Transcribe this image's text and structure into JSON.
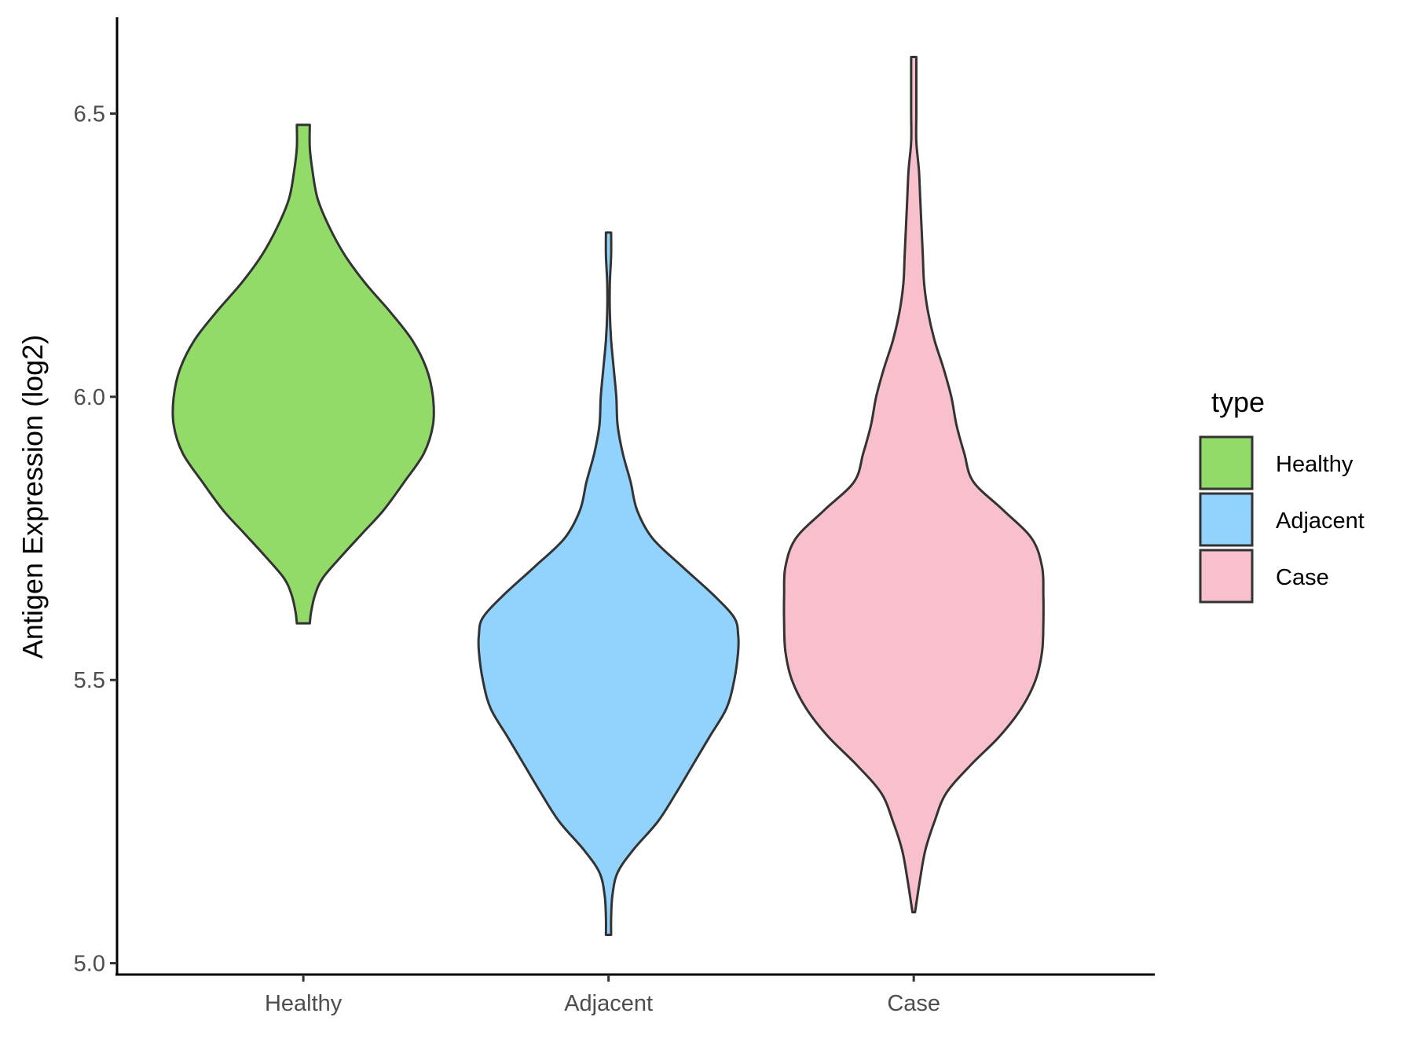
{
  "chart_data": {
    "type": "violin",
    "title": "",
    "xlabel": "",
    "ylabel": "Antigen Expression (log2)",
    "ylim": [
      4.98,
      6.67
    ],
    "yticks": [
      5.0,
      5.5,
      6.0,
      6.5
    ],
    "ytick_labels": [
      "5.0",
      "5.5",
      "6.0",
      "6.5"
    ],
    "categories": [
      "Healthy",
      "Adjacent",
      "Case"
    ],
    "legend": {
      "title": "type",
      "position": "right",
      "entries": [
        "Healthy",
        "Adjacent",
        "Case"
      ]
    },
    "grid": false,
    "series": [
      {
        "name": "Healthy",
        "color": "#93DB69",
        "min": 5.6,
        "max": 6.48,
        "profile": [
          [
            5.6,
            0.05
          ],
          [
            5.62,
            0.06
          ],
          [
            5.65,
            0.09
          ],
          [
            5.68,
            0.15
          ],
          [
            5.72,
            0.3
          ],
          [
            5.76,
            0.46
          ],
          [
            5.8,
            0.62
          ],
          [
            5.85,
            0.78
          ],
          [
            5.9,
            0.93
          ],
          [
            5.95,
            1.0
          ],
          [
            6.0,
            1.0
          ],
          [
            6.05,
            0.95
          ],
          [
            6.1,
            0.84
          ],
          [
            6.15,
            0.67
          ],
          [
            6.2,
            0.48
          ],
          [
            6.25,
            0.32
          ],
          [
            6.3,
            0.2
          ],
          [
            6.35,
            0.11
          ],
          [
            6.4,
            0.07
          ],
          [
            6.44,
            0.05
          ],
          [
            6.48,
            0.05
          ]
        ]
      },
      {
        "name": "Adjacent",
        "color": "#92D3FE",
        "min": 5.05,
        "max": 6.29,
        "profile": [
          [
            5.05,
            0.02
          ],
          [
            5.08,
            0.02
          ],
          [
            5.12,
            0.03
          ],
          [
            5.16,
            0.07
          ],
          [
            5.2,
            0.19
          ],
          [
            5.25,
            0.38
          ],
          [
            5.3,
            0.52
          ],
          [
            5.35,
            0.65
          ],
          [
            5.4,
            0.78
          ],
          [
            5.45,
            0.91
          ],
          [
            5.5,
            0.97
          ],
          [
            5.55,
            1.0
          ],
          [
            5.58,
            1.0
          ],
          [
            5.61,
            0.97
          ],
          [
            5.65,
            0.81
          ],
          [
            5.7,
            0.57
          ],
          [
            5.75,
            0.34
          ],
          [
            5.8,
            0.22
          ],
          [
            5.85,
            0.17
          ],
          [
            5.9,
            0.11
          ],
          [
            5.95,
            0.07
          ],
          [
            6.0,
            0.06
          ],
          [
            6.05,
            0.04
          ],
          [
            6.1,
            0.02
          ],
          [
            6.15,
            0.01
          ],
          [
            6.2,
            0.01
          ],
          [
            6.25,
            0.02
          ],
          [
            6.29,
            0.02
          ]
        ]
      },
      {
        "name": "Case",
        "color": "#F7C0CC",
        "min": 5.09,
        "max": 6.6,
        "profile": [
          [
            5.09,
            0.01
          ],
          [
            5.15,
            0.05
          ],
          [
            5.2,
            0.09
          ],
          [
            5.25,
            0.16
          ],
          [
            5.3,
            0.25
          ],
          [
            5.35,
            0.44
          ],
          [
            5.4,
            0.66
          ],
          [
            5.45,
            0.83
          ],
          [
            5.5,
            0.94
          ],
          [
            5.55,
            0.99
          ],
          [
            5.6,
            1.0
          ],
          [
            5.65,
            1.0
          ],
          [
            5.7,
            0.99
          ],
          [
            5.75,
            0.91
          ],
          [
            5.8,
            0.69
          ],
          [
            5.85,
            0.46
          ],
          [
            5.9,
            0.39
          ],
          [
            5.95,
            0.33
          ],
          [
            6.0,
            0.29
          ],
          [
            6.05,
            0.23
          ],
          [
            6.1,
            0.16
          ],
          [
            6.15,
            0.11
          ],
          [
            6.2,
            0.08
          ],
          [
            6.25,
            0.07
          ],
          [
            6.3,
            0.06
          ],
          [
            6.35,
            0.05
          ],
          [
            6.4,
            0.04
          ],
          [
            6.45,
            0.02
          ],
          [
            6.5,
            0.02
          ],
          [
            6.55,
            0.02
          ],
          [
            6.6,
            0.02
          ]
        ]
      }
    ]
  }
}
